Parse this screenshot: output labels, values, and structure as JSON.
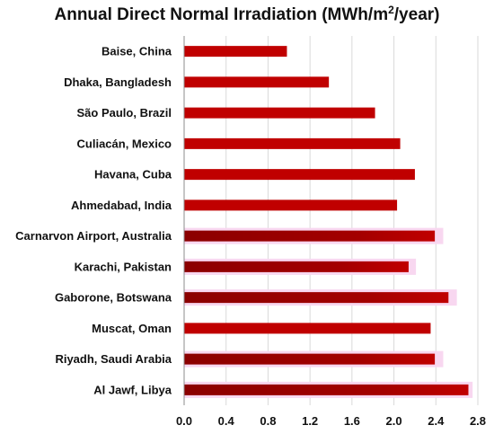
{
  "chart_data": {
    "type": "bar",
    "orientation": "horizontal",
    "title": "Annual Direct Normal Irradiation (MWh/m²/year)",
    "title_parts": {
      "before": "Annual Direct Normal Irradiation (MWh/m",
      "sup": "2",
      "after": "/year)"
    },
    "categories": [
      "Baise, China",
      "Dhaka, Bangladesh",
      "São Paulo, Brazil",
      "Culiacán, Mexico",
      "Havana, Cuba",
      "Ahmedabad, India",
      "Carnarvon Airport, Australia",
      "Karachi, Pakistan",
      "Gaborone, Botswana",
      "Muscat, Oman",
      "Riyadh, Saudi Arabia",
      "Al Jawf, Libya"
    ],
    "values": [
      0.98,
      1.38,
      1.82,
      2.06,
      2.2,
      2.03,
      2.39,
      2.14,
      2.52,
      2.35,
      2.39,
      2.71
    ],
    "glow_values": [
      null,
      null,
      null,
      null,
      null,
      null,
      2.47,
      2.21,
      2.6,
      null,
      2.47,
      2.75
    ],
    "xlim": [
      0,
      2.8
    ],
    "xticks": [
      "0.0",
      "0.4",
      "0.8",
      "1.2",
      "1.6",
      "2.0",
      "2.4",
      "2.8"
    ],
    "xlabel": "",
    "ylabel": "",
    "grid": "vertical",
    "colors": {
      "bar": "#c00000",
      "bar_dark_end": "#8b0000",
      "glow": "#f8d7f0",
      "grid": "#d9d9d9",
      "axis": "#8c8c8c"
    }
  }
}
